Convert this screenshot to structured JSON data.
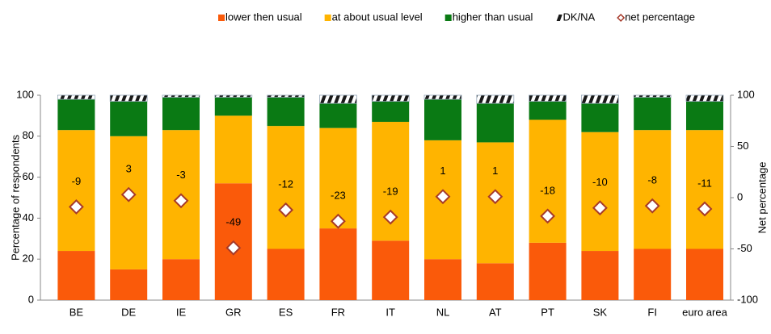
{
  "chart_data": {
    "type": "bar",
    "stacked": true,
    "categories": [
      "BE",
      "DE",
      "IE",
      "GR",
      "ES",
      "FR",
      "IT",
      "NL",
      "AT",
      "PT",
      "SK",
      "FI",
      "euro area"
    ],
    "series": [
      {
        "name": "lower then usual",
        "color": "#fa5a0a",
        "values": [
          24,
          15,
          20,
          57,
          25,
          35,
          29,
          20,
          18,
          28,
          24,
          25,
          25
        ]
      },
      {
        "name": "at about usual level",
        "color": "#ffb400",
        "values": [
          59,
          65,
          63,
          33,
          60,
          49,
          58,
          58,
          59,
          60,
          58,
          58,
          58
        ]
      },
      {
        "name": "higher than usual",
        "color": "#0a7a14",
        "values": [
          15,
          17,
          16,
          9,
          14,
          12,
          10,
          20,
          19,
          9,
          14,
          16,
          14
        ]
      },
      {
        "name": "DK/NA",
        "color": "#1a1a1a",
        "pattern": "hatch",
        "values": [
          2,
          3,
          1,
          1,
          1,
          4,
          3,
          2,
          4,
          3,
          4,
          1,
          3
        ]
      },
      {
        "name": "net percentage",
        "color": "#a63a2a",
        "marker": "diamond",
        "axis": "y2",
        "values": [
          -9,
          3,
          -3,
          -49,
          -12,
          -23,
          -19,
          1,
          1,
          -18,
          -10,
          -8,
          -11
        ]
      }
    ],
    "ylabel": "Percentage of respondents",
    "y2label": "Net percentage",
    "ylim": [
      0,
      100
    ],
    "yticks": [
      0,
      20,
      40,
      60,
      80,
      100
    ],
    "y2lim": [
      -100,
      100
    ],
    "y2ticks": [
      -100,
      -50,
      0,
      50,
      100
    ],
    "legend": "top"
  }
}
